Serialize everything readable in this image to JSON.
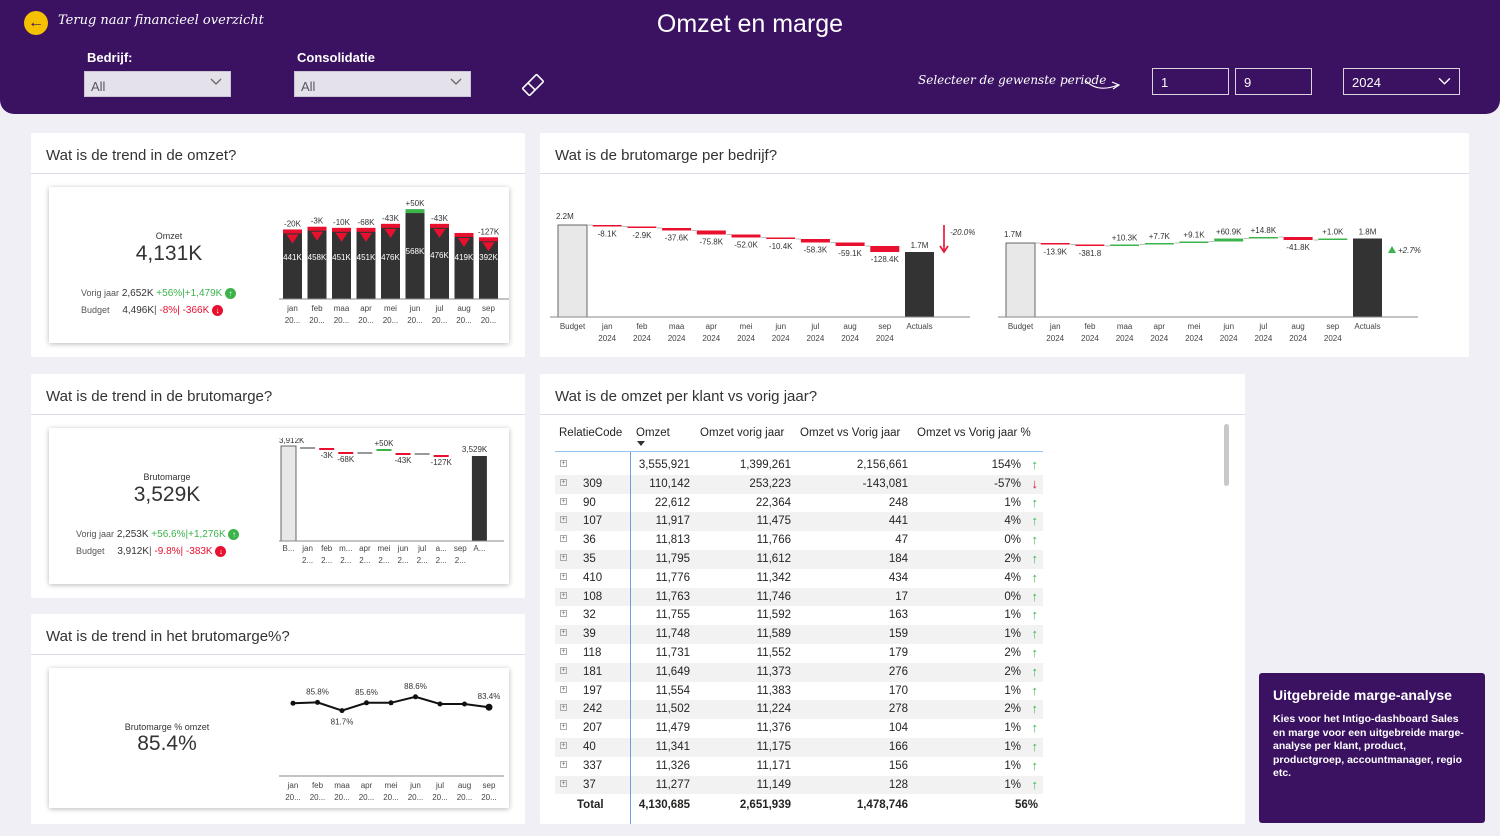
{
  "header": {
    "back_label": "Terug naar financieel overzicht",
    "title": "Omzet en marge",
    "filters": [
      {
        "label": "Bedrijf:",
        "value": "All"
      },
      {
        "label": "Consolidatie",
        "value": "All"
      }
    ],
    "period_label": "Selecteer de gewenste periode",
    "period_from": "1",
    "period_to": "9",
    "year": "2024"
  },
  "colors": {
    "brand": "#3a1261",
    "accent": "#f5c000",
    "positive": "#3cb44b",
    "negative": "#e8102e",
    "bar": "#333333"
  },
  "omzet_card": {
    "title": "Wat is de trend in de omzet?",
    "kpi_label": "Omzet",
    "kpi_value": "4,131K",
    "vorig_label": "Vorig jaar",
    "vorig_value": "2,652K",
    "vorig_pct": "+56%",
    "vorig_abs": "+1,479K",
    "budget_label": "Budget",
    "budget_value": "4,496K",
    "budget_pct": "-8%",
    "budget_abs": "-366K"
  },
  "marge_card": {
    "title": "Wat is de trend in de brutomarge?",
    "kpi_label": "Brutomarge",
    "kpi_value": "3,529K",
    "vorig_label": "Vorig jaar",
    "vorig_value": "2,253K",
    "vorig_pct": "+56.6%",
    "vorig_abs": "+1,276K",
    "budget_label": "Budget",
    "budget_value": "3,912K",
    "budget_pct": "-9.8%",
    "budget_abs": "-383K"
  },
  "pct_card": {
    "title": "Wat is de trend in het brutomarge%?",
    "kpi_label": "Brutomarge % omzet",
    "kpi_value": "85.4%"
  },
  "bedrijf_card": {
    "title": "Wat is de brutomarge per bedrijf?"
  },
  "klant_card": {
    "title": "Wat is de omzet per klant vs vorig jaar?",
    "columns": [
      "RelatieCode",
      "Omzet",
      "Omzet vorig jaar",
      "Omzet vs Vorig jaar",
      "Omzet vs Vorig jaar %"
    ],
    "rows": [
      {
        "code": "",
        "omzet": "3,555,921",
        "vorig": "1,399,261",
        "diff": "2,156,661",
        "pct": "154%",
        "dir": "up"
      },
      {
        "code": "309",
        "omzet": "110,142",
        "vorig": "253,223",
        "diff": "-143,081",
        "pct": "-57%",
        "dir": "down"
      },
      {
        "code": "90",
        "omzet": "22,612",
        "vorig": "22,364",
        "diff": "248",
        "pct": "1%",
        "dir": "up"
      },
      {
        "code": "107",
        "omzet": "11,917",
        "vorig": "11,475",
        "diff": "441",
        "pct": "4%",
        "dir": "up"
      },
      {
        "code": "36",
        "omzet": "11,813",
        "vorig": "11,766",
        "diff": "47",
        "pct": "0%",
        "dir": "up"
      },
      {
        "code": "35",
        "omzet": "11,795",
        "vorig": "11,612",
        "diff": "184",
        "pct": "2%",
        "dir": "up"
      },
      {
        "code": "410",
        "omzet": "11,776",
        "vorig": "11,342",
        "diff": "434",
        "pct": "4%",
        "dir": "up"
      },
      {
        "code": "108",
        "omzet": "11,763",
        "vorig": "11,746",
        "diff": "17",
        "pct": "0%",
        "dir": "up"
      },
      {
        "code": "32",
        "omzet": "11,755",
        "vorig": "11,592",
        "diff": "163",
        "pct": "1%",
        "dir": "up"
      },
      {
        "code": "39",
        "omzet": "11,748",
        "vorig": "11,589",
        "diff": "159",
        "pct": "1%",
        "dir": "up"
      },
      {
        "code": "118",
        "omzet": "11,731",
        "vorig": "11,552",
        "diff": "179",
        "pct": "2%",
        "dir": "up"
      },
      {
        "code": "181",
        "omzet": "11,649",
        "vorig": "11,373",
        "diff": "276",
        "pct": "2%",
        "dir": "up"
      },
      {
        "code": "197",
        "omzet": "11,554",
        "vorig": "11,383",
        "diff": "170",
        "pct": "1%",
        "dir": "up"
      },
      {
        "code": "242",
        "omzet": "11,502",
        "vorig": "11,224",
        "diff": "278",
        "pct": "2%",
        "dir": "up"
      },
      {
        "code": "207",
        "omzet": "11,479",
        "vorig": "11,376",
        "diff": "104",
        "pct": "1%",
        "dir": "up"
      },
      {
        "code": "40",
        "omzet": "11,341",
        "vorig": "11,175",
        "diff": "166",
        "pct": "1%",
        "dir": "up"
      },
      {
        "code": "337",
        "omzet": "11,326",
        "vorig": "11,171",
        "diff": "156",
        "pct": "1%",
        "dir": "up"
      },
      {
        "code": "37",
        "omzet": "11,277",
        "vorig": "11,149",
        "diff": "128",
        "pct": "1%",
        "dir": "up"
      }
    ],
    "total": {
      "label": "Total",
      "omzet": "4,130,685",
      "vorig": "2,651,939",
      "diff": "1,478,746",
      "pct": "56%"
    }
  },
  "promo": {
    "title": "Uitgebreide marge-analyse",
    "text": "Kies voor het Intigo-dashboard Sales en marge voor een uitgebreide marge-analyse per klant, product, productgroep, accountmanager, regio etc."
  },
  "chart_data": [
    {
      "id": "omzet-trend",
      "type": "bar",
      "categories": [
        "jan 20...",
        "feb 20...",
        "maa 20...",
        "apr 20...",
        "mei 20...",
        "jun 20...",
        "jul 20...",
        "aug 20...",
        "sep 20..."
      ],
      "values": [
        441,
        458,
        451,
        451,
        476,
        568,
        476,
        419,
        392
      ],
      "value_labels": [
        "441K",
        "458K",
        "451K",
        "451K",
        "476K",
        "568K",
        "476K",
        "419K",
        "392K"
      ],
      "variance_labels": [
        "-20K",
        "-3K",
        "-10K",
        "-68K",
        "-43K",
        "+50K",
        "-43K",
        "",
        "-127K"
      ],
      "variance_dir": [
        "neg",
        "neg",
        "neg",
        "neg",
        "neg",
        "pos",
        "neg",
        "neg",
        "neg"
      ]
    },
    {
      "id": "brutomarge-trend",
      "type": "bar",
      "categories": [
        "B...",
        "jan 2...",
        "feb 2...",
        "m... 2...",
        "apr 2...",
        "mei 2...",
        "jun 2...",
        "jul 2...",
        "a... 2...",
        "sep 2...",
        "A..."
      ],
      "start_label": "3,912K",
      "end_label": "3,529K",
      "delta_labels": [
        "",
        "-3K",
        "-68K",
        "",
        "+50K",
        "-43K",
        "",
        "-127K"
      ]
    },
    {
      "id": "brutomarge-pct-trend",
      "type": "line",
      "categories": [
        "jan 20...",
        "feb 20...",
        "maa 20...",
        "apr 20...",
        "mei 20...",
        "jun 20...",
        "jul 20...",
        "aug 20...",
        "sep 20..."
      ],
      "values": [
        85.4,
        85.8,
        81.7,
        85.6,
        85.6,
        88.6,
        85.0,
        85.0,
        83.4
      ],
      "labels": [
        "",
        "85.8%",
        "81.7%",
        "85.6%",
        "",
        "88.6%",
        "",
        "",
        "83.4%"
      ]
    },
    {
      "id": "bedrijf-waterfall-1",
      "type": "bar",
      "categories": [
        "Budget",
        "jan 2024",
        "feb 2024",
        "maa 2024",
        "apr 2024",
        "mei 2024",
        "jun 2024",
        "jul 2024",
        "aug 2024",
        "sep 2024",
        "Actuals"
      ],
      "start_label": "2.2M",
      "end_label": "1.7M",
      "deltas": [
        "-8.1K",
        "-2.9K",
        "-37.6K",
        "-75.8K",
        "-52.0K",
        "-10.4K",
        "-58.3K",
        "-59.1K",
        "-128.4K"
      ],
      "total_change": "-20.0%"
    },
    {
      "id": "bedrijf-waterfall-2",
      "type": "bar",
      "categories": [
        "Budget",
        "jan 2024",
        "feb 2024",
        "maa 2024",
        "apr 2024",
        "mei 2024",
        "jun 2024",
        "jul 2024",
        "aug 2024",
        "sep 2024",
        "Actuals"
      ],
      "start_label": "1.7M",
      "end_label": "1.8M",
      "deltas": [
        "-13.9K",
        "-381.8",
        "+10.3K",
        "+7.7K",
        "+9.1K",
        "+60.9K",
        "+14.8K",
        "-41.8K",
        "+1.0K"
      ],
      "total_change": "+2.7%"
    }
  ]
}
